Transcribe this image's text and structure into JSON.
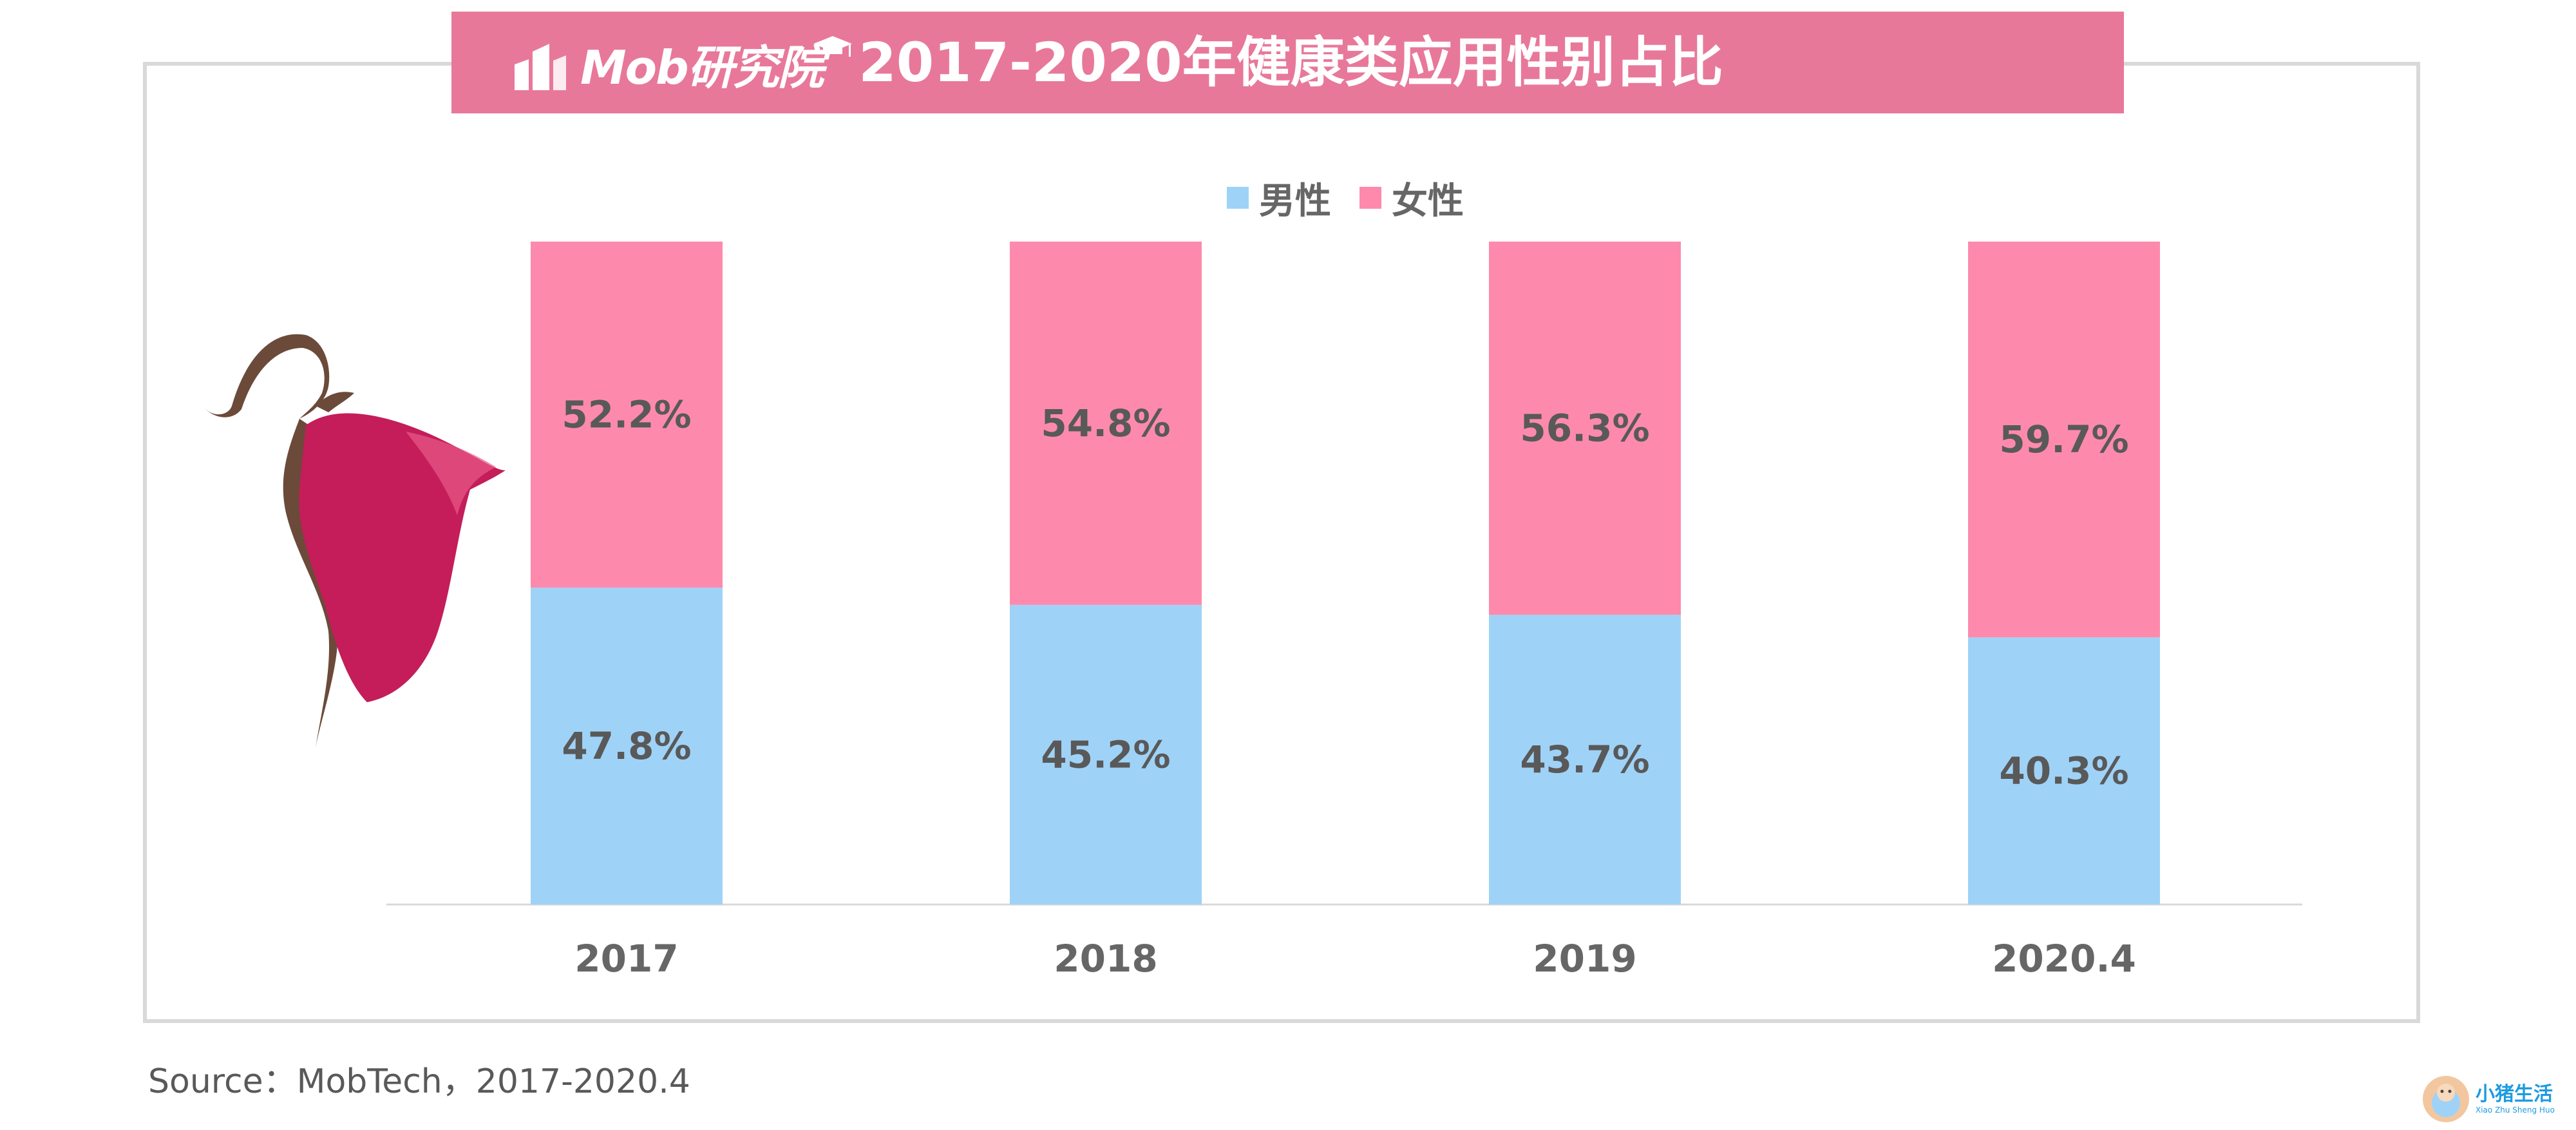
{
  "header": {
    "logo_text": "Mob研究院",
    "title": "2017-2020年健康类应用性别占比"
  },
  "legend": [
    {
      "label": "男性",
      "color": "#9fd2f7"
    },
    {
      "label": "女性",
      "color": "#fd8aac"
    }
  ],
  "source": "Source：MobTech，2017-2020.4",
  "watermark": {
    "cn": "小猪生活",
    "en": "Xiao Zhu Sheng Huo"
  },
  "chart_data": {
    "type": "bar",
    "stacked": true,
    "categories": [
      "2017",
      "2018",
      "2019",
      "2020.4"
    ],
    "series": [
      {
        "name": "男性",
        "values": [
          47.8,
          45.2,
          43.7,
          40.3
        ],
        "labels": [
          "47.8%",
          "45.2%",
          "43.7%",
          "40.3%"
        ],
        "color": "#9fd2f7"
      },
      {
        "name": "女性",
        "values": [
          52.2,
          54.8,
          56.3,
          59.7
        ],
        "labels": [
          "52.2%",
          "54.8%",
          "56.3%",
          "59.7%"
        ],
        "color": "#fd8aac"
      }
    ],
    "ylim": [
      0,
      100
    ],
    "title": "2017-2020年健康类应用性别占比",
    "xlabel": "",
    "ylabel": "",
    "grid": false,
    "legend_position": "top-center"
  }
}
